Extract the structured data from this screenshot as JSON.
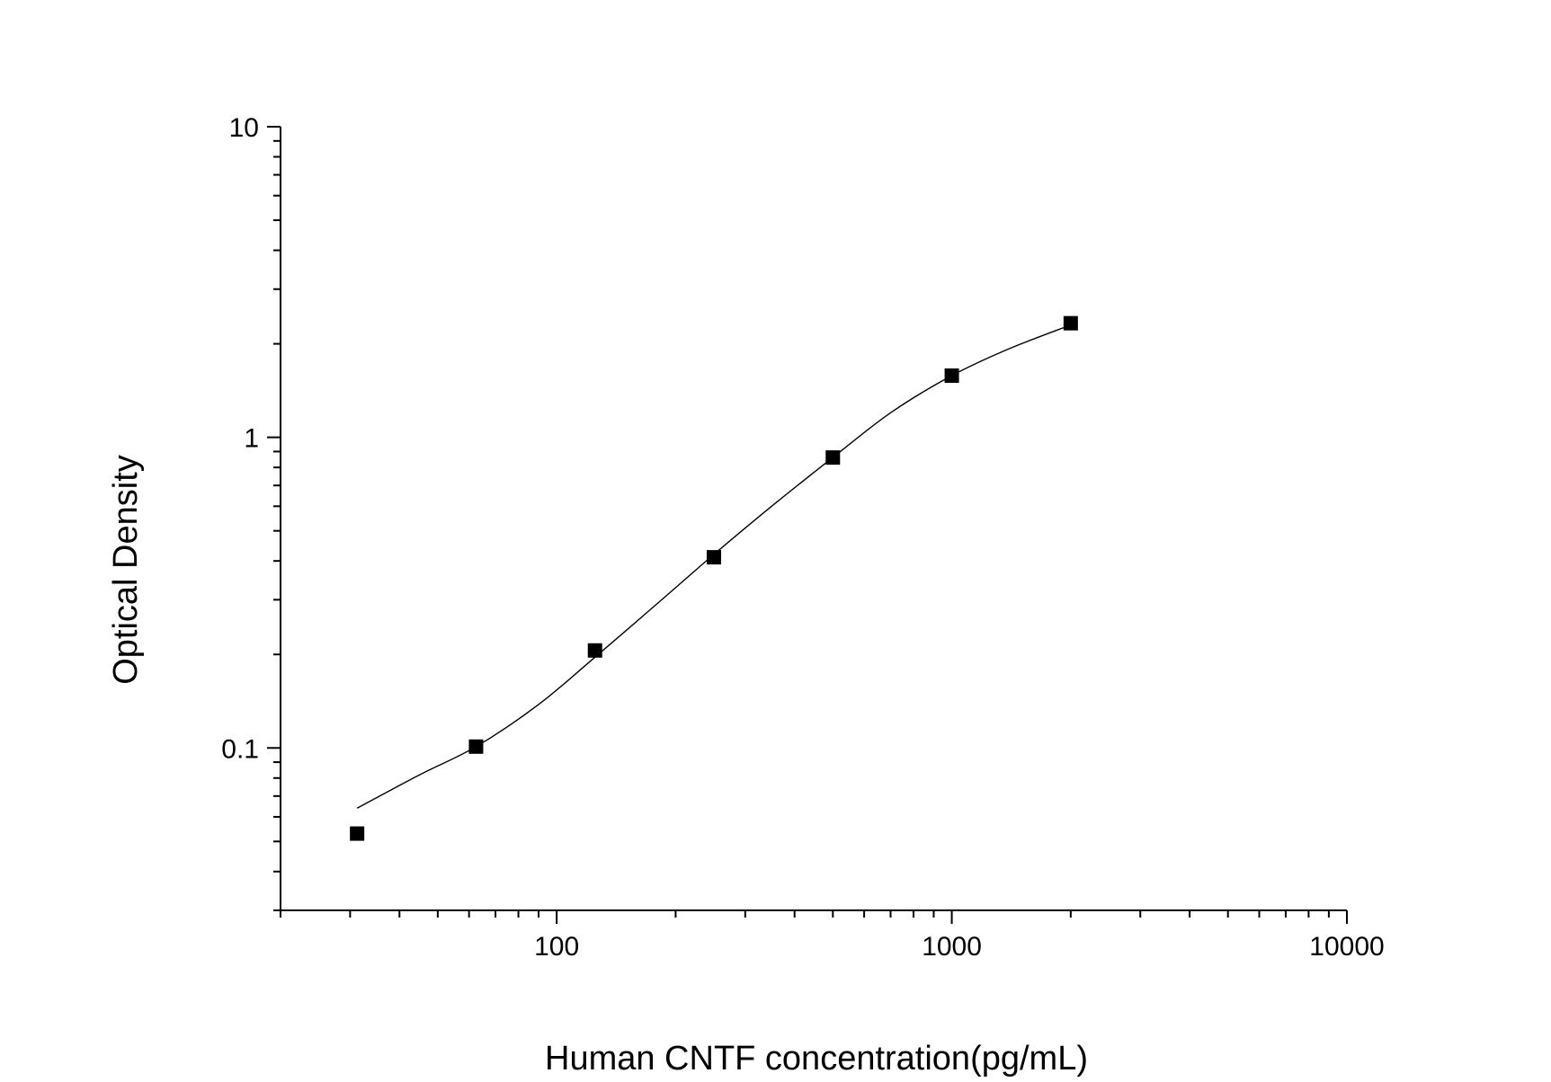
{
  "chart_data": {
    "type": "scatter",
    "title": "",
    "xlabel": "Human CNTF concentration(pg/mL)",
    "ylabel": "Optical Density",
    "xscale": "log",
    "yscale": "log",
    "xlim": [
      20,
      10000
    ],
    "ylim": [
      0.03,
      10
    ],
    "x_ticks": [
      100,
      1000,
      10000
    ],
    "x_tick_labels": [
      "100",
      "1000",
      "10000"
    ],
    "y_ticks": [
      0.1,
      1,
      10
    ],
    "y_tick_labels": [
      "0.1",
      "1",
      "10"
    ],
    "grid": false,
    "legend": "none",
    "marker_color": "#000000",
    "line_color": "#000000",
    "series": [
      {
        "marker": "square",
        "x": [
          31.25,
          62.5,
          125,
          250,
          500,
          1000,
          2000
        ],
        "y": [
          0.053,
          0.101,
          0.206,
          0.411,
          0.861,
          1.58,
          2.33
        ]
      }
    ],
    "fit_curve": {
      "x": [
        31.25,
        45,
        62.5,
        90,
        125,
        180,
        250,
        350,
        500,
        700,
        1000,
        1400,
        2000
      ],
      "y": [
        0.064,
        0.082,
        0.101,
        0.138,
        0.196,
        0.292,
        0.42,
        0.6,
        0.861,
        1.2,
        1.58,
        1.93,
        2.3
      ]
    }
  }
}
